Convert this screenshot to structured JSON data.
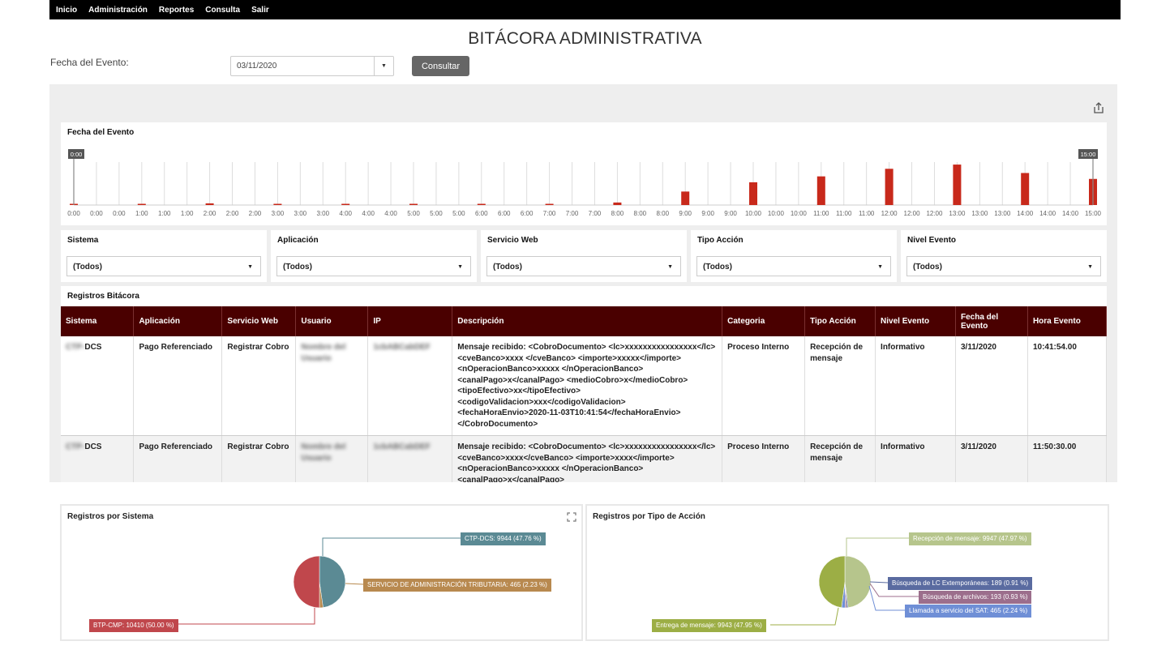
{
  "nav": {
    "items": [
      "Inicio",
      "Administración",
      "Reportes",
      "Consulta",
      "Salir"
    ]
  },
  "page_title": "BITÁCORA ADMINISTRATIVA",
  "filter_form": {
    "label": "Fecha del Evento:",
    "date_value": "03/11/2020",
    "button_label": "Consultar"
  },
  "timeline": {
    "title": "Fecha del Evento",
    "range_start": "0:00",
    "range_end": "15:00",
    "ticks": [
      "0:00",
      "0:00",
      "0:00",
      "1:00",
      "1:00",
      "1:00",
      "2:00",
      "2:00",
      "2:00",
      "3:00",
      "3:00",
      "3:00",
      "4:00",
      "4:00",
      "4:00",
      "5:00",
      "5:00",
      "5:00",
      "6:00",
      "6:00",
      "6:00",
      "7:00",
      "7:00",
      "7:00",
      "8:00",
      "8:00",
      "8:00",
      "9:00",
      "9:00",
      "9:00",
      "10:00",
      "10:00",
      "10:00",
      "11:00",
      "11:00",
      "11:00",
      "12:00",
      "12:00",
      "12:00",
      "13:00",
      "13:00",
      "13:00",
      "14:00",
      "14:00",
      "14:00",
      "15:00"
    ],
    "bar_color": "#c8291b"
  },
  "filters": [
    {
      "label": "Sistema",
      "value": "(Todos)"
    },
    {
      "label": "Aplicación",
      "value": "(Todos)"
    },
    {
      "label": "Servicio Web",
      "value": "(Todos)"
    },
    {
      "label": "Tipo Acción",
      "value": "(Todos)"
    },
    {
      "label": "Nivel Evento",
      "value": "(Todos)"
    }
  ],
  "registros": {
    "title": "Registros Bitácora",
    "columns": [
      "Sistema",
      "Aplicación",
      "Servicio Web",
      "Usuario",
      "IP",
      "Descripción",
      "Categoria",
      "Tipo Acción",
      "Nivel Evento",
      "Fecha del Evento",
      "Hora Evento"
    ],
    "rows": [
      {
        "sistema_prefix": "CTP-",
        "sistema": "DCS",
        "aplicacion": "Pago Referenciado",
        "servicio": "Registrar Cobro",
        "usuario": "Nombre del Usuario",
        "ip": "1cbABCabDEF",
        "descripcion": "Mensaje recibido: <CobroDocumento> <lc>xxxxxxxxxxxxxxxx</lc> <cveBanco>xxxx </cveBanco> <importe>xxxxx</importe> <nOperacionBanco>xxxxx </nOperacionBanco> <canalPago>x</canalPago> <medioCobro>x</medioCobro> <tipoEfectivo>xx</tipoEfectivo> <codigoValidacion>xxx</codigoValidacion> <fechaHoraEnvio>2020-11-03T10:41:54</fechaHoraEnvio> </CobroDocumento>",
        "categoria": "Proceso Interno",
        "tipo_accion": "Recepción de mensaje",
        "nivel": "Informativo",
        "fecha": "3/11/2020",
        "hora": "10:41:54.00"
      },
      {
        "sistema_prefix": "CTP-",
        "sistema": "DCS",
        "aplicacion": "Pago Referenciado",
        "servicio": "Registrar Cobro",
        "usuario": "Nombre del Usuario",
        "ip": "1cbABCabDEF",
        "descripcion": "Mensaje recibido: <CobroDocumento> <lc>xxxxxxxxxxxxxxxx</lc> <cveBanco>xxxx</cveBanco> <importe>xxxx</importe> <nOperacionBanco>xxxxx </nOperacionBanco> <canalPago>x</canalPago>",
        "categoria": "Proceso Interno",
        "tipo_accion": "Recepción de mensaje",
        "nivel": "Informativo",
        "fecha": "3/11/2020",
        "hora": "11:50:30.00"
      }
    ]
  },
  "chart_data": [
    {
      "type": "bar",
      "title": "Fecha del Evento",
      "x": [
        "0:00",
        "1:00",
        "2:00",
        "3:00",
        "4:00",
        "5:00",
        "6:00",
        "7:00",
        "8:00",
        "9:00",
        "10:00",
        "11:00",
        "12:00",
        "13:00",
        "14:00",
        "15:00"
      ],
      "values": [
        1,
        1,
        2,
        1,
        1,
        1,
        1,
        1,
        3,
        16,
        27,
        34,
        43,
        48,
        38,
        31
      ]
    },
    {
      "type": "pie",
      "title": "Registros por Sistema",
      "labels": [
        "CTP-DCS: 9944 (47.76 %)",
        "SERVICIO DE ADMINISTRACIÓN TRIBUTARIA: 465 (2.23 %)",
        "BTP-CMP: 10410 (50.00 %)"
      ],
      "values": [
        9944,
        465,
        10410
      ],
      "colors": [
        "#5b8a94",
        "#b8894f",
        "#c0474c"
      ]
    },
    {
      "type": "pie",
      "title": "Registros por Tipo de Acción",
      "labels": [
        "Recepción de mensaje: 9947 (47.97 %)",
        "Búsqueda de LC Extemporáneas: 189 (0.91 %)",
        "Búsqueda de archivos: 193 (0.93 %)",
        "Llamada a servicio del SAT: 465 (2.24 %)",
        "Entrega de mensaje: 9943 (47.95 %)"
      ],
      "values": [
        9947,
        189,
        193,
        465,
        9943
      ],
      "colors": [
        "#b6c58c",
        "#5a6ba0",
        "#9c6e8c",
        "#6f8fd6",
        "#9cae45"
      ]
    }
  ]
}
